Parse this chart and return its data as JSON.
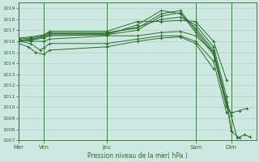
{
  "bg_color": "#cce8e0",
  "grid_color": "#aaccC4",
  "line_color": "#2d6e2d",
  "text_color": "#2d6e2d",
  "xlabel": "Pression niveau de la mer( hPa )",
  "ylim": [
    1007,
    1019.5
  ],
  "yticks": [
    1007,
    1008,
    1009,
    1010,
    1011,
    1012,
    1013,
    1014,
    1015,
    1016,
    1017,
    1018,
    1019
  ],
  "day_labels": [
    "Mer",
    "Ven",
    "Jeu",
    "Sam",
    "Dim"
  ],
  "day_positions": [
    0.0,
    0.105,
    0.37,
    0.745,
    0.895
  ],
  "series": [
    {
      "x": [
        0.0,
        0.05,
        0.105,
        0.13,
        0.37,
        0.5,
        0.6,
        0.68,
        0.745,
        0.82,
        0.875,
        0.895,
        0.92,
        0.95,
        0.975
      ],
      "y": [
        1016.0,
        1016.1,
        1016.5,
        1016.8,
        1016.8,
        1017.2,
        1018.5,
        1018.8,
        1017.0,
        1015.0,
        1010.5,
        1009.2,
        1007.2,
        1007.5,
        1007.3
      ]
    },
    {
      "x": [
        0.0,
        0.05,
        0.105,
        0.13,
        0.37,
        0.5,
        0.6,
        0.68,
        0.745,
        0.82,
        0.875,
        0.895,
        0.93,
        0.96
      ],
      "y": [
        1016.1,
        1016.2,
        1016.4,
        1016.6,
        1016.6,
        1017.0,
        1018.3,
        1018.6,
        1016.8,
        1014.8,
        1010.2,
        1009.5,
        1009.7,
        1009.9
      ]
    },
    {
      "x": [
        0.0,
        0.05,
        0.105,
        0.13,
        0.37,
        0.5,
        0.6,
        0.68,
        0.745,
        0.82,
        0.875,
        0.895,
        0.93
      ],
      "y": [
        1016.0,
        1016.1,
        1016.3,
        1016.5,
        1016.6,
        1017.5,
        1018.8,
        1018.5,
        1017.2,
        1015.2,
        1010.5,
        1007.8,
        1007.2
      ]
    },
    {
      "x": [
        0.0,
        0.05,
        0.105,
        0.13,
        0.37,
        0.5,
        0.6,
        0.68,
        0.745,
        0.82,
        0.875,
        0.895
      ],
      "y": [
        1016.2,
        1016.3,
        1016.5,
        1016.7,
        1016.7,
        1017.3,
        1018.0,
        1018.2,
        1017.5,
        1015.5,
        1011.0,
        1007.8
      ]
    },
    {
      "x": [
        0.0,
        0.05,
        0.105,
        0.13,
        0.37,
        0.5,
        0.6,
        0.68,
        0.745,
        0.82,
        0.875
      ],
      "y": [
        1016.3,
        1016.4,
        1016.6,
        1016.9,
        1016.9,
        1017.8,
        1017.8,
        1017.9,
        1017.8,
        1016.0,
        1012.5
      ]
    },
    {
      "x": [
        0.0,
        0.05,
        0.105,
        0.13,
        0.37,
        0.5,
        0.6,
        0.68,
        0.745,
        0.82,
        0.875
      ],
      "y": [
        1016.1,
        1016.0,
        1016.0,
        1016.2,
        1016.5,
        1016.5,
        1016.8,
        1016.9,
        1016.5,
        1015.0,
        1010.0
      ]
    },
    {
      "x": [
        0.0,
        0.05,
        0.09,
        0.105,
        0.13,
        0.37,
        0.5,
        0.6,
        0.68,
        0.745,
        0.82,
        0.875
      ],
      "y": [
        1016.0,
        1015.8,
        1015.2,
        1015.4,
        1015.8,
        1015.8,
        1016.2,
        1016.5,
        1016.5,
        1016.0,
        1014.2,
        1009.5
      ]
    },
    {
      "x": [
        0.0,
        0.04,
        0.07,
        0.105,
        0.13,
        0.37,
        0.5,
        0.6,
        0.68,
        0.745,
        0.82
      ],
      "y": [
        1015.8,
        1015.5,
        1015.0,
        1014.8,
        1015.2,
        1015.5,
        1016.0,
        1016.3,
        1016.4,
        1015.8,
        1013.5
      ]
    }
  ],
  "marker": "+",
  "markersize": 2.5,
  "linewidth": 0.7
}
